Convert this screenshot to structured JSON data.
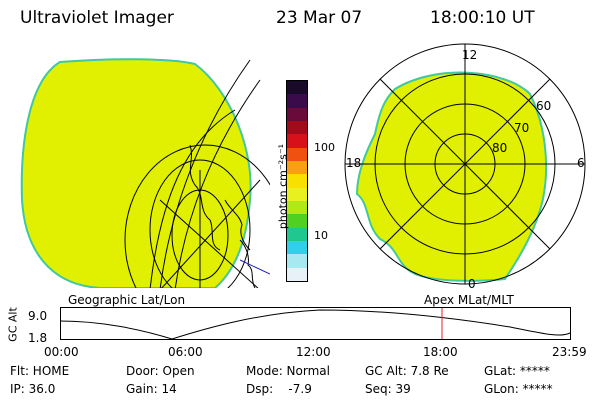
{
  "header": {
    "instrument": "Ultraviolet Imager",
    "date": "23 Mar 07",
    "time": "18:00:10 UT"
  },
  "colorbar": {
    "unit": "photon cm⁻²s⁻¹",
    "ticks": [
      "100",
      "10"
    ],
    "colors": [
      "#1a0a2a",
      "#3a0a4a",
      "#6a0a3a",
      "#a00a1a",
      "#d8101a",
      "#f05010",
      "#f8a010",
      "#f8e000",
      "#e8f020",
      "#b0e818",
      "#50d020",
      "#20c890",
      "#30d0e8",
      "#a8e8f0",
      "#e8f0f8"
    ]
  },
  "polar": {
    "mlt_labels": {
      "top": "12",
      "left": "18",
      "right": "6",
      "bottom": "0"
    },
    "lat_labels": [
      "60",
      "70",
      "80"
    ]
  },
  "panel_labels": {
    "geographic": "Geographic Lat/Lon",
    "apex": "Apex MLat/MLT"
  },
  "altitude_plot": {
    "ylabel": "GC Alt",
    "yticks": [
      "9.0",
      "1.8"
    ],
    "xticks": [
      "00:00",
      "06:00",
      "12:00",
      "18:00",
      "23:59"
    ],
    "marker_color": "#e02020"
  },
  "footer": {
    "flt": "Flt: HOME",
    "ip": "IP: 36.0",
    "door": "Door: Open",
    "gain": "Gain: 14",
    "mode": "Mode: Normal",
    "dsp": "Dsp:    -7.9",
    "gcalt": "GC Alt: 7.8 Re",
    "seq": "Seq: 39",
    "glat": "GLat: *****",
    "glon": "GLon: *****"
  },
  "colors": {
    "aurora_fill": "#e0f000",
    "aurora_edge": "#40c8a0"
  }
}
